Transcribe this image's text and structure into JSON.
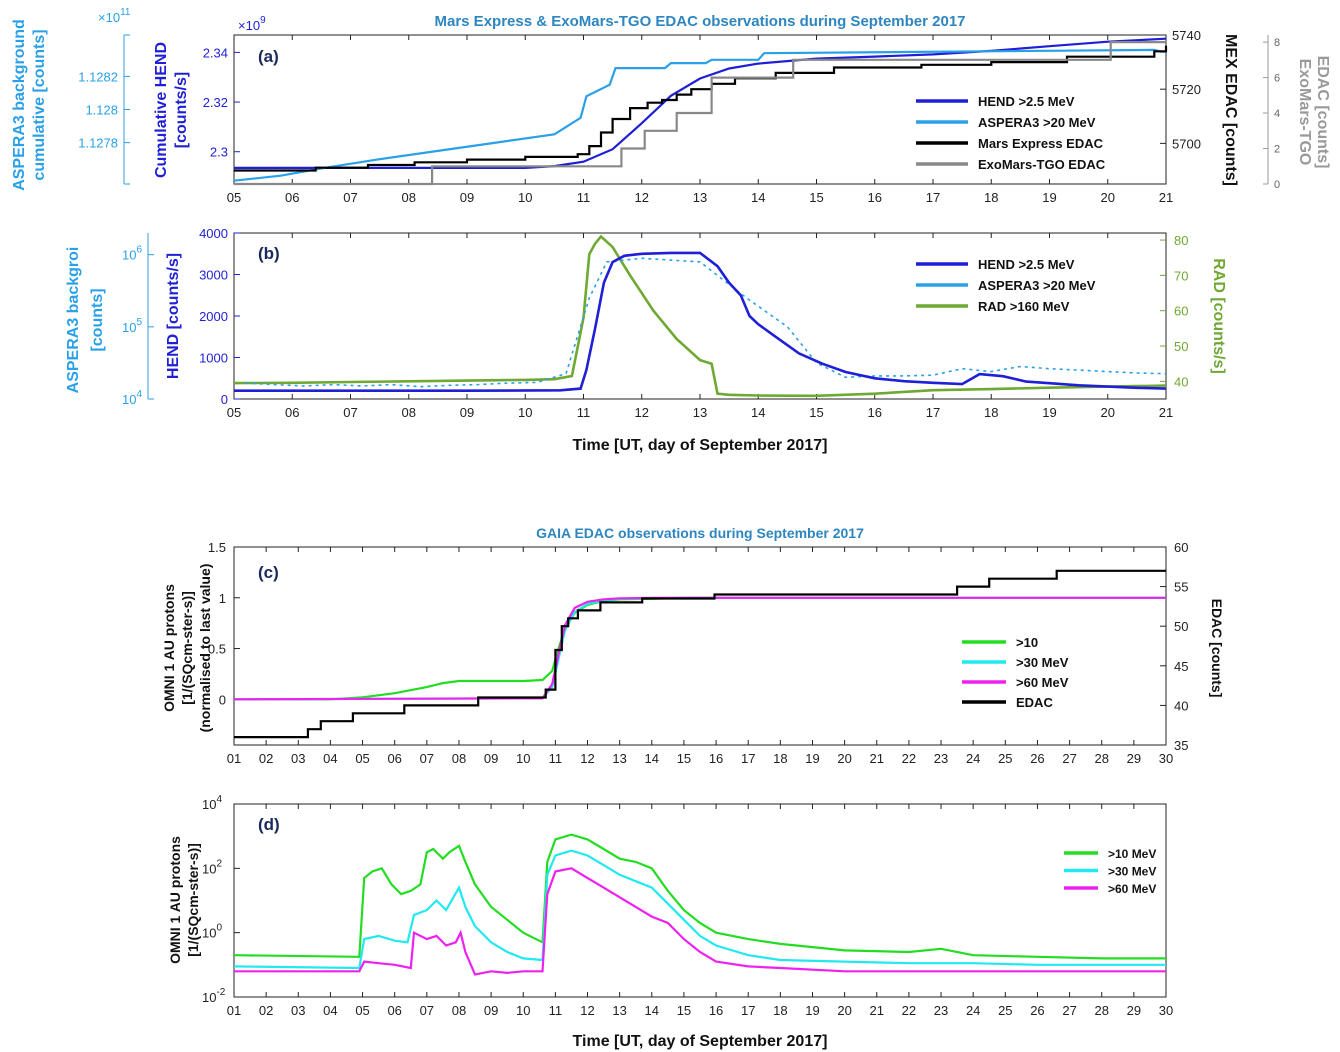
{
  "chart_data": [
    {
      "panel": "a",
      "type": "line",
      "title": "Mars Express & ExoMars-TGO  EDAC  observations during September 2017",
      "panel_label": "(a)",
      "xlim": [
        5,
        21
      ],
      "x_ticks": [
        "05",
        "06",
        "07",
        "08",
        "09",
        "10",
        "11",
        "12",
        "13",
        "14",
        "15",
        "16",
        "17",
        "18",
        "19",
        "20",
        "21"
      ],
      "ylabel_left": "Cumulative HEND [counts/s]",
      "ylabel_left2": "ASPERA3 background cumulative [counts]",
      "ylabel_right": "MEX EDAC [counts]",
      "ylabel_right2": "ExoMars-TGO EDAC [counts]",
      "left_multiplier": "×10",
      "left_multiplier_exp": "9",
      "left2_multiplier": "×10",
      "left2_multiplier_exp": "11",
      "ylim_left": [
        2.287,
        2.347
      ],
      "yticks_left": [
        "2.3",
        "2.32",
        "2.34"
      ],
      "ylim_left2": [
        1.12755,
        1.12845
      ],
      "yticks_left2": [
        "1.1278",
        "1.128",
        "1.1282"
      ],
      "ylim_right": [
        5685,
        5740
      ],
      "yticks_right": [
        "5700",
        "5720",
        "5740"
      ],
      "ylim_right2": [
        0,
        8.4
      ],
      "yticks_right2": [
        "0",
        "2",
        "4",
        "6",
        "8"
      ],
      "series": [
        {
          "name": "HEND >2.5 MeV",
          "color": "#1f1fd6",
          "x": [
            5,
            10,
            10.5,
            11,
            11.5,
            12,
            12.5,
            13,
            13.5,
            14,
            15,
            16,
            17,
            18,
            19,
            20,
            21
          ],
          "y": [
            2.2935,
            2.2935,
            2.2942,
            2.296,
            2.301,
            2.3115,
            2.3225,
            2.3295,
            2.3335,
            2.3355,
            2.3375,
            2.3383,
            2.3392,
            2.3406,
            2.3425,
            2.3443,
            2.3455
          ]
        },
        {
          "name": "ASPERA3 >20 MeV",
          "color": "#2aa0e8",
          "x": [
            5,
            5.8,
            6.6,
            7.5,
            8.5,
            9.5,
            10.5,
            10.95,
            11.05,
            11.45,
            11.55,
            12.4,
            12.5,
            13.1,
            13.2,
            14.0,
            14.1,
            20.8,
            20.9,
            21
          ],
          "y": [
            1.12757,
            1.1276,
            1.12765,
            1.1277,
            1.12775,
            1.1278,
            1.12785,
            1.12795,
            1.12808,
            1.12815,
            1.12825,
            1.12825,
            1.12828,
            1.12828,
            1.1283,
            1.1283,
            1.12834,
            1.12836,
            1.12835,
            1.12835
          ]
        },
        {
          "name": "Mars Express EDAC",
          "color": "#000000",
          "step": true,
          "x": [
            5,
            6.4,
            7.3,
            8.1,
            9.0,
            10.0,
            10.9,
            11.1,
            11.3,
            11.5,
            11.8,
            12.1,
            12.35,
            12.6,
            12.85,
            13.2,
            13.6,
            14.3,
            15.3,
            16.8,
            18.0,
            19.3,
            20.8,
            21
          ],
          "y": [
            5690,
            5691,
            5692,
            5693,
            5694,
            5695,
            5696,
            5699,
            5704,
            5709,
            5713,
            5715,
            5716,
            5718,
            5720,
            5722,
            5724,
            5726,
            5728,
            5729,
            5730,
            5732,
            5734,
            5736
          ]
        },
        {
          "name": "ExoMars-TGO EDAC",
          "color": "#888888",
          "step": true,
          "x": [
            5,
            8.4,
            11.65,
            12.05,
            12.6,
            13.2,
            14.6,
            20.05,
            21
          ],
          "y": [
            0,
            1,
            2,
            3,
            4,
            6,
            7,
            8,
            8
          ]
        }
      ]
    },
    {
      "panel": "b",
      "type": "line",
      "panel_label": "(b)",
      "xlim": [
        5,
        21
      ],
      "x_ticks": [
        "05",
        "06",
        "07",
        "08",
        "09",
        "10",
        "11",
        "12",
        "13",
        "14",
        "15",
        "16",
        "17",
        "18",
        "19",
        "20",
        "21"
      ],
      "xlabel": "Time [UT, day of September 2017]",
      "ylabel_left": "HEND [counts/s]",
      "ylabel_left2": "ASPERA3 backgroud [counts]",
      "ylabel_right": "RAD [counts/s]",
      "ylim_left": [
        0,
        4000
      ],
      "yticks_left": [
        "0",
        "1000",
        "2000",
        "3000",
        "4000"
      ],
      "ylim_left2_log": [
        4,
        6.3
      ],
      "yticks_left2": [
        {
          "base": "10",
          "exp": "4",
          "v": 4
        },
        {
          "base": "10",
          "exp": "5",
          "v": 5
        },
        {
          "base": "10",
          "exp": "6",
          "v": 6
        }
      ],
      "ylim_right": [
        35,
        82
      ],
      "yticks_right": [
        "40",
        "50",
        "60",
        "70",
        "80"
      ],
      "series": [
        {
          "name": "HEND >2.5 MeV",
          "color": "#1f1fd6",
          "x": [
            5,
            9.0,
            10.6,
            10.95,
            11.05,
            11.2,
            11.35,
            11.5,
            11.7,
            12.0,
            12.5,
            13.0,
            13.3,
            13.5,
            13.7,
            13.85,
            14.0,
            14.3,
            14.7,
            15.1,
            15.5,
            16.0,
            16.5,
            17.0,
            17.5,
            17.8,
            18.2,
            18.6,
            19.0,
            19.5,
            20.0,
            20.5,
            21
          ],
          "y": [
            200,
            200,
            210,
            250,
            700,
            1700,
            2800,
            3300,
            3450,
            3500,
            3520,
            3520,
            3200,
            2800,
            2500,
            2000,
            1800,
            1500,
            1100,
            850,
            650,
            500,
            430,
            390,
            360,
            600,
            550,
            420,
            380,
            330,
            300,
            270,
            250
          ]
        },
        {
          "name": "ASPERA3 >20 MeV",
          "color": "#2aa0e8",
          "scale": "log",
          "x": [
            5.2,
            5.7,
            6.2,
            6.7,
            7.2,
            7.7,
            8.2,
            8.7,
            9.2,
            9.7,
            10.2,
            10.7,
            11.1,
            11.4,
            12.0,
            13.0,
            13.8,
            14.5,
            15.0,
            15.5,
            16.0,
            16.5,
            17.0,
            17.5,
            18.0,
            18.5,
            19.0,
            19.5,
            20.0,
            20.5,
            21
          ],
          "y": [
            4.22,
            4.2,
            4.18,
            4.2,
            4.18,
            4.2,
            4.17,
            4.19,
            4.2,
            4.22,
            4.23,
            4.35,
            5.4,
            5.9,
            5.95,
            5.9,
            5.4,
            5.0,
            4.5,
            4.3,
            4.32,
            4.32,
            4.33,
            4.42,
            4.38,
            4.45,
            4.42,
            4.4,
            4.38,
            4.36,
            4.35
          ]
        },
        {
          "name": "RAD >160 MeV",
          "color": "#6fa832",
          "x": [
            5,
            6,
            7,
            8,
            9,
            10,
            10.5,
            10.8,
            11.0,
            11.1,
            11.2,
            11.3,
            11.5,
            11.8,
            12.2,
            12.6,
            13.0,
            13.2,
            13.3,
            13.5,
            14.0,
            15.0,
            16.0,
            17.0,
            18.0,
            19.0,
            20.0,
            21
          ],
          "y": [
            39.5,
            39.6,
            39.8,
            40.0,
            40.2,
            40.4,
            40.6,
            41.5,
            58,
            76,
            79,
            81,
            78,
            70,
            60,
            52,
            46,
            45,
            36.5,
            36.2,
            36.0,
            35.9,
            36.5,
            37.5,
            37.8,
            38.2,
            38.5,
            38.8
          ]
        }
      ]
    },
    {
      "panel": "c",
      "type": "line",
      "title": "GAIA EDAC observations during September 2017",
      "panel_label": "(c)",
      "xlim": [
        1,
        30
      ],
      "x_ticks": [
        "01",
        "02",
        "03",
        "04",
        "05",
        "06",
        "07",
        "08",
        "09",
        "10",
        "11",
        "12",
        "13",
        "14",
        "15",
        "16",
        "17",
        "18",
        "19",
        "20",
        "21",
        "22",
        "23",
        "24",
        "25",
        "26",
        "27",
        "28",
        "29",
        "30"
      ],
      "ylabel_left": "OMNI 1 AU protons",
      "ylabel_left_line2": "[1/(SQcm-ster-s)]",
      "ylabel_left_line3": "(normalised to last value)",
      "ylabel_right": "EDAC  [counts]",
      "ylim_left": [
        -0.45,
        1.5
      ],
      "yticks_left": [
        "0",
        "0.5",
        "1",
        "1.5"
      ],
      "ylim_right": [
        35,
        60
      ],
      "yticks_right": [
        "35",
        "40",
        "45",
        "50",
        "55",
        "60"
      ],
      "series": [
        {
          "name": ">10",
          "color": "#22dd22",
          "x": [
            1,
            4,
            5,
            6,
            7,
            7.5,
            8,
            9,
            10,
            10.6,
            10.9,
            11.1,
            11.3,
            11.6,
            12.0,
            12.5,
            13.0,
            14.0,
            15.0,
            30
          ],
          "y": [
            0,
            0,
            0.02,
            0.06,
            0.12,
            0.16,
            0.18,
            0.18,
            0.18,
            0.19,
            0.28,
            0.5,
            0.7,
            0.85,
            0.93,
            0.97,
            0.985,
            0.99,
            1.0,
            1.0
          ]
        },
        {
          "name": ">30 MeV",
          "color": "#22e8f0",
          "x": [
            1,
            10.6,
            10.9,
            11.1,
            11.3,
            11.6,
            12.0,
            12.5,
            13.0,
            14.0,
            15.0,
            30
          ],
          "y": [
            0,
            0.01,
            0.12,
            0.4,
            0.68,
            0.86,
            0.94,
            0.975,
            0.99,
            0.995,
            1.0,
            1.0
          ]
        },
        {
          "name": ">60 MeV",
          "color": "#ee22ee",
          "x": [
            1,
            10.6,
            10.9,
            11.1,
            11.3,
            11.6,
            12.0,
            12.5,
            13.0,
            14.0,
            15.0,
            30
          ],
          "y": [
            0,
            0.01,
            0.15,
            0.45,
            0.73,
            0.9,
            0.96,
            0.985,
            0.995,
            1.0,
            1.0,
            1.0
          ]
        },
        {
          "name": "EDAC",
          "color": "#000000",
          "step": true,
          "axis": "right",
          "x": [
            1,
            3.3,
            3.7,
            4.7,
            6.3,
            8.6,
            10.7,
            11.0,
            11.2,
            11.4,
            11.7,
            12.4,
            13.7,
            15.95,
            23.5,
            24.5,
            26.6,
            30
          ],
          "y": [
            36,
            37,
            38,
            39,
            40,
            41,
            42,
            47,
            50,
            51,
            52,
            53,
            53.5,
            54,
            55,
            56,
            57,
            57
          ]
        }
      ]
    },
    {
      "panel": "d",
      "type": "line",
      "panel_label": "(d)",
      "xlim": [
        1,
        30
      ],
      "x_ticks": [
        "01",
        "02",
        "03",
        "04",
        "05",
        "06",
        "07",
        "08",
        "09",
        "10",
        "11",
        "12",
        "13",
        "14",
        "15",
        "16",
        "17",
        "18",
        "19",
        "20",
        "21",
        "22",
        "23",
        "24",
        "25",
        "26",
        "27",
        "28",
        "29",
        "30"
      ],
      "xlabel": "Time [UT, day of September 2017]",
      "ylabel_left": "OMNI 1 AU protons",
      "ylabel_left_line2": "[1/(SQcm-ster-s)]",
      "ylim_left_log": [
        -2,
        4
      ],
      "yticks_left": [
        {
          "base": "10",
          "exp": "-2",
          "v": -2
        },
        {
          "base": "10",
          "exp": "0",
          "v": 0
        },
        {
          "base": "10",
          "exp": "2",
          "v": 2
        },
        {
          "base": "10",
          "exp": "4",
          "v": 4
        }
      ],
      "series": [
        {
          "name": ">10 MeV",
          "color": "#22dd22",
          "scale": "log",
          "x": [
            1,
            4.9,
            5.05,
            5.3,
            5.6,
            5.9,
            6.2,
            6.5,
            6.8,
            7.0,
            7.2,
            7.5,
            7.7,
            8.0,
            8.2,
            8.5,
            9.0,
            9.5,
            10.0,
            10.6,
            10.75,
            11.0,
            11.5,
            12.0,
            12.5,
            13.0,
            13.5,
            14.0,
            14.5,
            15.0,
            15.5,
            16.0,
            17.0,
            18.0,
            19.0,
            20.0,
            22.0,
            23.0,
            24.0,
            26.0,
            28.0,
            30
          ],
          "y": [
            -0.7,
            -0.75,
            1.7,
            1.9,
            2.0,
            1.5,
            1.2,
            1.3,
            1.5,
            2.5,
            2.6,
            2.3,
            2.5,
            2.7,
            2.2,
            1.5,
            0.8,
            0.4,
            0.0,
            -0.3,
            2.2,
            2.9,
            3.05,
            2.9,
            2.6,
            2.3,
            2.2,
            2.0,
            1.3,
            0.7,
            0.3,
            0.0,
            -0.2,
            -0.35,
            -0.45,
            -0.55,
            -0.6,
            -0.5,
            -0.7,
            -0.75,
            -0.8,
            -0.8
          ]
        },
        {
          "name": ">30 MeV",
          "color": "#22e8f0",
          "scale": "log",
          "x": [
            1,
            4.9,
            5.05,
            5.5,
            6.0,
            6.4,
            6.6,
            7.0,
            7.3,
            7.6,
            8.0,
            8.2,
            8.5,
            9.0,
            9.5,
            10.0,
            10.6,
            10.75,
            11.0,
            11.5,
            12.0,
            12.5,
            13.0,
            13.5,
            14.0,
            14.5,
            15.0,
            15.5,
            16.0,
            17.0,
            18.0,
            20.0,
            22.0,
            24.0,
            26.0,
            28.0,
            30
          ],
          "y": [
            -1.05,
            -1.1,
            -0.2,
            -0.1,
            -0.25,
            -0.3,
            0.55,
            0.7,
            1.0,
            0.7,
            1.4,
            0.8,
            0.2,
            -0.3,
            -0.6,
            -0.8,
            -0.85,
            1.8,
            2.4,
            2.55,
            2.4,
            2.1,
            1.8,
            1.6,
            1.4,
            0.9,
            0.4,
            -0.1,
            -0.4,
            -0.7,
            -0.85,
            -0.9,
            -0.95,
            -0.95,
            -1.0,
            -1.0,
            -1.0
          ]
        },
        {
          "name": ">60 MeV",
          "color": "#ee22ee",
          "scale": "log",
          "x": [
            1,
            4.9,
            5.05,
            5.5,
            6.0,
            6.5,
            6.6,
            7.0,
            7.3,
            7.6,
            7.9,
            8.05,
            8.2,
            8.5,
            9.0,
            9.5,
            10.0,
            10.6,
            10.75,
            11.0,
            11.5,
            12.0,
            12.5,
            13.0,
            13.5,
            14.0,
            14.5,
            15.0,
            15.5,
            16.0,
            17.0,
            18.0,
            20.0,
            22.0,
            24.0,
            26.0,
            28.0,
            30
          ],
          "y": [
            -1.2,
            -1.2,
            -0.9,
            -0.95,
            -1.0,
            -1.1,
            0.0,
            -0.2,
            -0.1,
            -0.4,
            -0.3,
            0.0,
            -0.6,
            -1.3,
            -1.2,
            -1.25,
            -1.2,
            -1.2,
            1.2,
            1.9,
            2.0,
            1.7,
            1.4,
            1.1,
            0.8,
            0.5,
            0.3,
            -0.2,
            -0.6,
            -0.9,
            -1.05,
            -1.1,
            -1.2,
            -1.2,
            -1.2,
            -1.2,
            -1.2,
            -1.2
          ]
        }
      ]
    }
  ]
}
